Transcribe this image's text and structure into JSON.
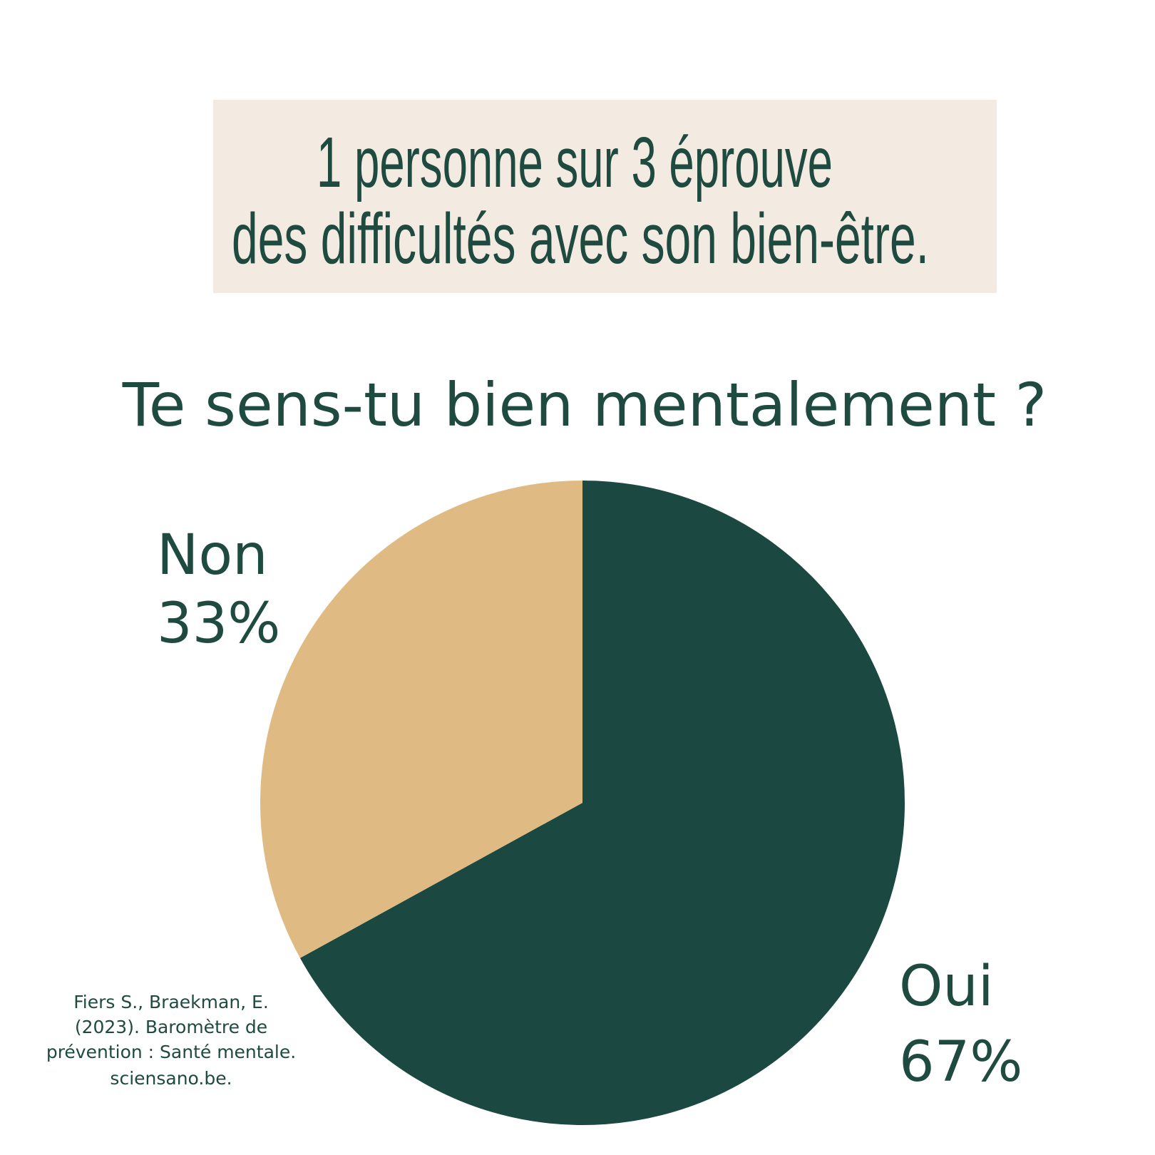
{
  "header": {
    "lines": [
      "1 personne sur 3 éprouve",
      "des difficultés avec son bien-être."
    ]
  },
  "chart_data": {
    "type": "pie",
    "title": "Te sens-tu bien mentalement ?",
    "categories": [
      "Oui",
      "Non"
    ],
    "values": [
      67,
      33
    ],
    "value_labels": [
      "67%",
      "33%"
    ],
    "colors": [
      "#1b4840",
      "#dfbb83"
    ]
  },
  "source": {
    "lines": [
      "Fiers S., Braekman, E.",
      "(2023). Baromètre de",
      "prévention : Santé mentale.",
      "sciensano.be."
    ]
  }
}
